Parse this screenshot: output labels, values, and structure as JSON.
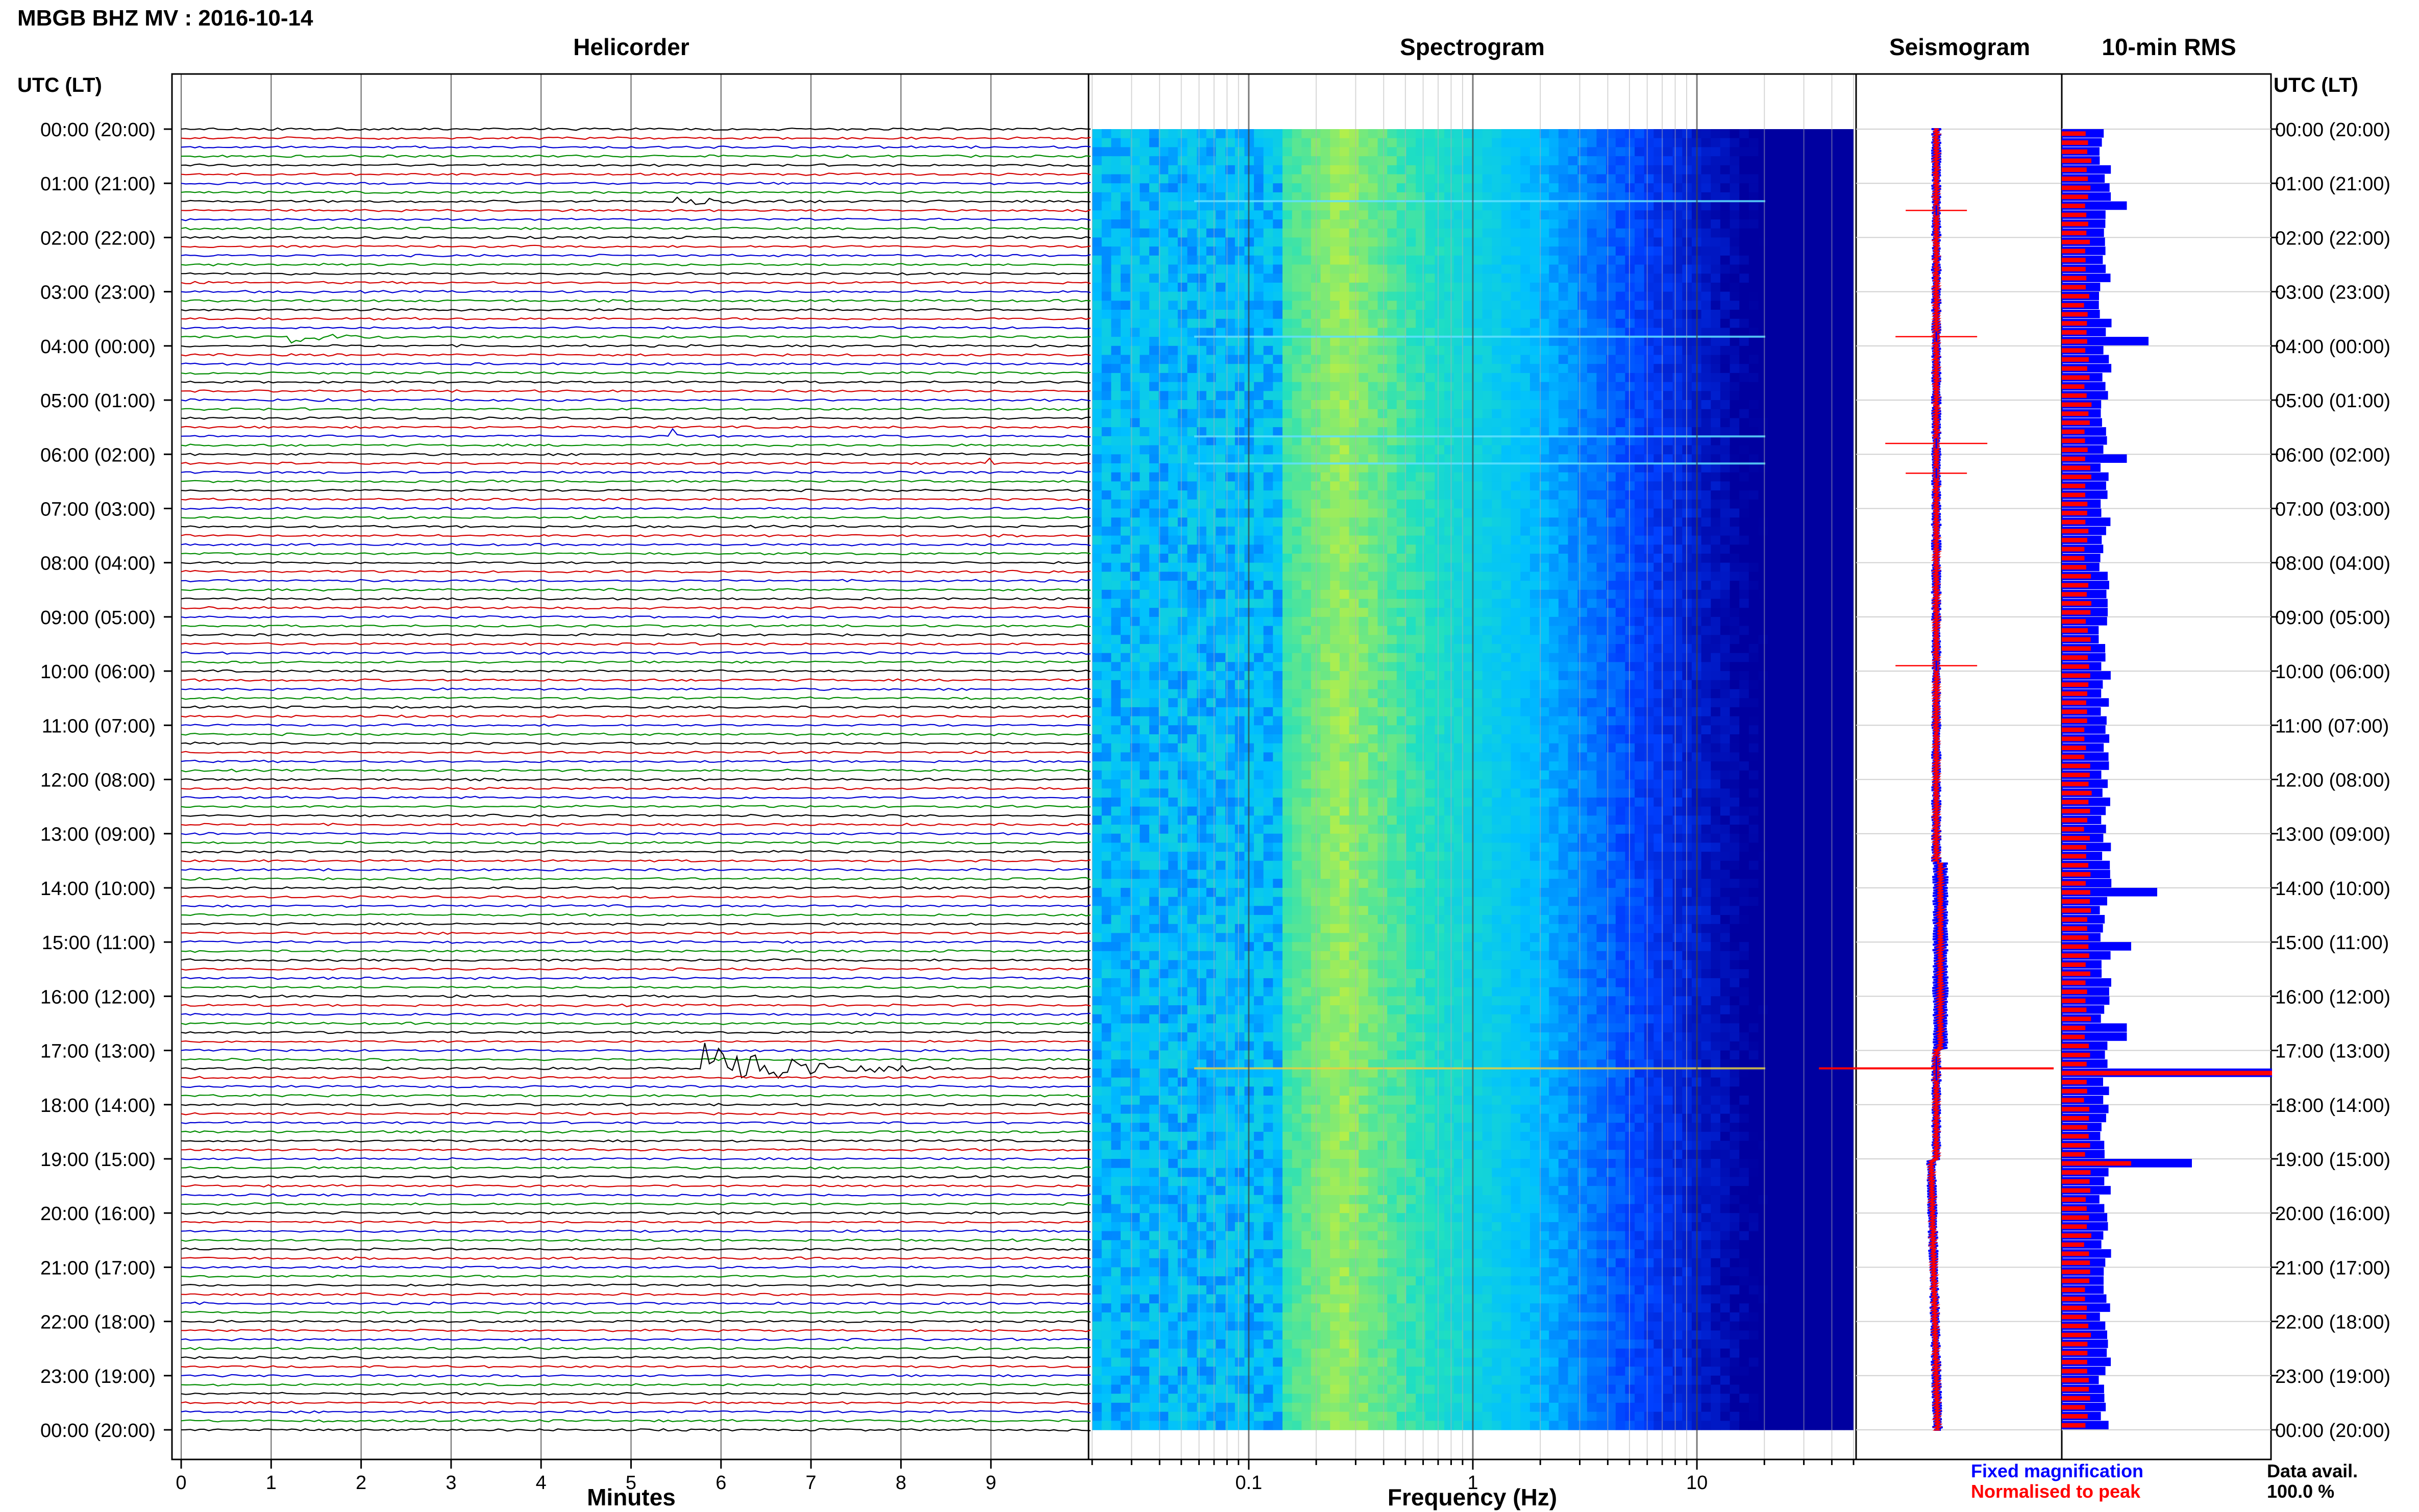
{
  "figure": {
    "title": "MBGB BHZ MV : 2016-10-14",
    "utc_lt_label": "UTC (LT)",
    "panels": {
      "helicorder": "Helicorder",
      "spectrogram": "Spectrogram",
      "seismogram": "Seismogram",
      "rms": "10-min RMS"
    },
    "x_labels": {
      "helicorder": "Minutes",
      "spectrogram": "Frequency (Hz)"
    },
    "legend": {
      "fixed": "Fixed magnification",
      "normalised": "Normalised to peak"
    },
    "data_avail_label": "Data avail.",
    "data_avail_value": "100.0 %",
    "colors": {
      "trace_cycle": [
        "#000000",
        "#d40000",
        "#0000d4",
        "#008c00"
      ],
      "fixed": "#0000ff",
      "normalised": "#ff0000"
    }
  },
  "chart_data": [
    {
      "type": "line",
      "panel": "helicorder",
      "title": "Helicorder",
      "xlabel": "Minutes",
      "xlim": [
        0,
        10
      ],
      "x_ticks": [
        "0",
        "1",
        "2",
        "3",
        "4",
        "5",
        "6",
        "7",
        "8",
        "9"
      ],
      "time_labels": [
        "00:00 (20:00)",
        "01:00 (21:00)",
        "02:00 (22:00)",
        "03:00 (23:00)",
        "04:00 (00:00)",
        "05:00 (01:00)",
        "06:00 (02:00)",
        "07:00 (03:00)",
        "08:00 (04:00)",
        "09:00 (05:00)",
        "10:00 (06:00)",
        "11:00 (07:00)",
        "12:00 (08:00)",
        "13:00 (09:00)",
        "14:00 (10:00)",
        "15:00 (11:00)",
        "16:00 (12:00)",
        "17:00 (13:00)",
        "18:00 (14:00)",
        "19:00 (15:00)",
        "20:00 (16:00)",
        "21:00 (17:00)",
        "22:00 (18:00)",
        "23:00 (19:00)",
        "00:00 (20:00)"
      ],
      "rows_per_hour": 6,
      "events": [
        {
          "hour": 1.33,
          "minute_start": 5.5,
          "minute_end": 7.3,
          "amplitude": 0.25
        },
        {
          "hour": 3.83,
          "minute_start": 1.2,
          "minute_end": 2.6,
          "amplitude": 0.35
        },
        {
          "hour": 5.67,
          "minute_start": 5.45,
          "minute_end": 5.55,
          "amplitude": 0.9
        },
        {
          "hour": 6.17,
          "minute_start": 8.95,
          "minute_end": 9.05,
          "amplitude": 0.7
        },
        {
          "hour": 17.33,
          "minute_start": 5.8,
          "minute_end": 8.6,
          "amplitude": 1.8
        }
      ]
    },
    {
      "type": "heatmap",
      "panel": "spectrogram",
      "title": "Spectrogram",
      "xlabel": "Frequency (Hz)",
      "x_scale": "log",
      "xlim": [
        0.02,
        50
      ],
      "x_ticks": [
        "0.1",
        "1",
        "10"
      ],
      "rows_per_hour": 6,
      "peak_frequency_hz": 0.25,
      "colormap": [
        "#0000a0",
        "#0040ff",
        "#00c0ff",
        "#20e0c0",
        "#c0f040"
      ]
    },
    {
      "type": "line",
      "panel": "seismogram",
      "title": "Seismogram",
      "ylim_hours": [
        0,
        24
      ],
      "series": [
        {
          "name": "Fixed magnification",
          "color": "#0000ff"
        },
        {
          "name": "Normalised to peak",
          "color": "#ff0000"
        }
      ],
      "spikes_hours": [
        1.5,
        3.83,
        5.8,
        6.35,
        9.9,
        17.33
      ]
    },
    {
      "type": "bar",
      "panel": "rms",
      "title": "10-min RMS",
      "orientation": "horizontal",
      "ylim_hours": [
        0,
        24
      ],
      "bar_interval_hours": 0.1667,
      "series": [
        {
          "name": "Fixed magnification",
          "color": "#0000ff",
          "peaks": [
            {
              "hour": 1.4,
              "value": 1.5
            },
            {
              "hour": 3.9,
              "value": 2.0
            },
            {
              "hour": 6.0,
              "value": 1.5
            },
            {
              "hour": 14.0,
              "value": 2.2
            },
            {
              "hour": 15.0,
              "value": 1.6
            },
            {
              "hour": 16.6,
              "value": 1.5
            },
            {
              "hour": 17.4,
              "value": 5.0
            },
            {
              "hour": 19.0,
              "value": 3.0
            }
          ],
          "baseline": 1.0
        },
        {
          "name": "Normalised to peak",
          "color": "#ff0000",
          "peaks": [
            {
              "hour": 17.4,
              "value": 5.0
            },
            {
              "hour": 19.0,
              "value": 1.6
            }
          ],
          "baseline": 0.6
        }
      ]
    }
  ]
}
